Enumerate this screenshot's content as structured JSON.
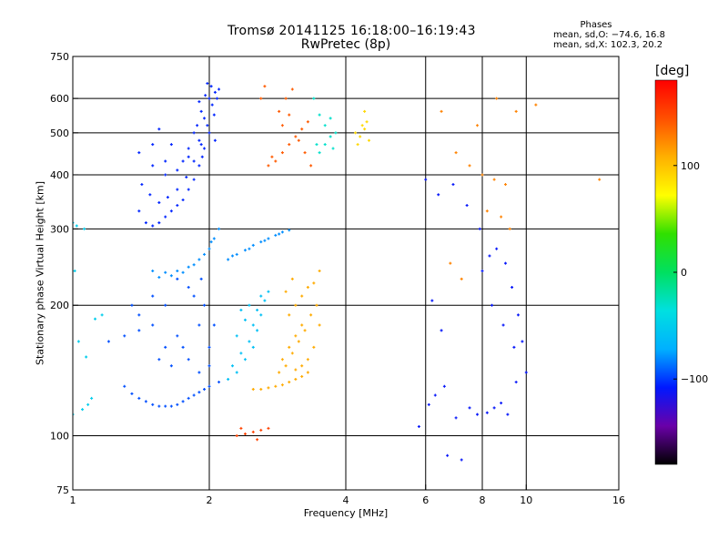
{
  "header": {
    "title_line1": "Tromsø 20141125 16:18:00–16:19:43",
    "title_line2": "RwPretec (8p)"
  },
  "phase_box": {
    "title": "Phases",
    "line_O": "mean, sd,O: −74.6, 16.8",
    "line_X": "mean, sd,X: 102.3, 20.2"
  },
  "colorbar": {
    "unit": "[deg]",
    "ticks": [
      {
        "value": 100,
        "label": "100"
      },
      {
        "value": 0,
        "label": "0"
      },
      {
        "value": -100,
        "label": "−100"
      }
    ],
    "range": [
      -180,
      180
    ],
    "colormap": [
      "#000000",
      "#6a00a8",
      "#0018ff",
      "#00b0ff",
      "#00e0e0",
      "#00e060",
      "#30e000",
      "#ffff00",
      "#ffb000",
      "#ff5000",
      "#ff0000"
    ]
  },
  "chart_data": {
    "type": "scatter",
    "title": "Tromsø 20141125 16:18:00–16:19:43",
    "subtitle": "RwPretec (8p)",
    "xlabel": "Frequency [MHz]",
    "ylabel": "Stationary phase Virtual Height [km]",
    "xscale": "log",
    "yscale": "log",
    "xlim": [
      1,
      16
    ],
    "ylim": [
      75,
      750
    ],
    "grid": true,
    "xticks": [
      {
        "value": 1,
        "label": "1"
      },
      {
        "value": 2,
        "label": "2"
      },
      {
        "value": 4,
        "label": "4"
      },
      {
        "value": 6,
        "label": "6"
      },
      {
        "value": 8,
        "label": "8"
      },
      {
        "value": 10,
        "label": "10"
      },
      {
        "value": 16,
        "label": "16"
      }
    ],
    "yticks": [
      {
        "value": 75,
        "label": "75"
      },
      {
        "value": 100,
        "label": "100"
      },
      {
        "value": 200,
        "label": "200"
      },
      {
        "value": 300,
        "label": "300"
      },
      {
        "value": 400,
        "label": "400"
      },
      {
        "value": 500,
        "label": "500"
      },
      {
        "value": 600,
        "label": "600"
      },
      {
        "value": 750,
        "label": "750"
      }
    ],
    "grid_x": [
      2,
      4,
      6,
      8,
      10
    ],
    "grid_y": [
      100,
      200,
      300,
      400,
      500,
      600
    ],
    "series": [
      {
        "points": [
          [
            1.4,
            330
          ],
          [
            1.45,
            310
          ],
          [
            1.5,
            305
          ],
          [
            1.55,
            310
          ],
          [
            1.6,
            320
          ],
          [
            1.65,
            330
          ],
          [
            1.7,
            340
          ],
          [
            1.75,
            350
          ],
          [
            1.8,
            370
          ],
          [
            1.85,
            390
          ],
          [
            1.9,
            420
          ],
          [
            1.95,
            460
          ],
          [
            2.0,
            500
          ],
          [
            2.05,
            550
          ],
          [
            2.08,
            600
          ],
          [
            2.1,
            630
          ],
          [
            1.42,
            380
          ],
          [
            1.48,
            360
          ],
          [
            1.55,
            345
          ],
          [
            1.62,
            355
          ],
          [
            1.7,
            370
          ],
          [
            1.78,
            395
          ],
          [
            1.85,
            430
          ],
          [
            1.92,
            470
          ],
          [
            1.98,
            520
          ],
          [
            2.03,
            580
          ],
          [
            2.06,
            620
          ],
          [
            1.5,
            420
          ],
          [
            1.6,
            400
          ],
          [
            1.7,
            410
          ],
          [
            1.8,
            440
          ],
          [
            1.9,
            480
          ],
          [
            1.95,
            540
          ],
          [
            2.0,
            600
          ],
          [
            1.4,
            450
          ],
          [
            1.5,
            470
          ],
          [
            1.6,
            430
          ],
          [
            1.65,
            470
          ],
          [
            1.55,
            510
          ],
          [
            1.92,
            560
          ],
          [
            1.96,
            610
          ],
          [
            1.9,
            590
          ],
          [
            2.02,
            640
          ],
          [
            1.98,
            650
          ],
          [
            1.88,
            520
          ],
          [
            2.06,
            480
          ],
          [
            1.85,
            500
          ],
          [
            1.93,
            440
          ],
          [
            1.8,
            460
          ],
          [
            1.75,
            430
          ]
        ],
        "phase": -105
      },
      {
        "points": [
          [
            1.5,
            240
          ],
          [
            1.6,
            238
          ],
          [
            1.7,
            240
          ],
          [
            1.8,
            245
          ],
          [
            1.9,
            255
          ],
          [
            2.0,
            270
          ],
          [
            2.05,
            285
          ],
          [
            2.1,
            300
          ],
          [
            1.55,
            232
          ],
          [
            1.65,
            234
          ],
          [
            1.75,
            238
          ],
          [
            1.85,
            248
          ],
          [
            1.95,
            262
          ],
          [
            2.02,
            280
          ],
          [
            2.2,
            255
          ],
          [
            2.3,
            262
          ],
          [
            2.4,
            268
          ],
          [
            2.5,
            275
          ],
          [
            2.6,
            280
          ],
          [
            2.7,
            285
          ],
          [
            2.8,
            290
          ],
          [
            2.9,
            295
          ],
          [
            3.0,
            298
          ],
          [
            2.25,
            260
          ],
          [
            2.45,
            270
          ],
          [
            2.65,
            282
          ],
          [
            2.85,
            292
          ]
        ],
        "phase": -80
      },
      {
        "points": [
          [
            1.3,
            130
          ],
          [
            1.35,
            125
          ],
          [
            1.4,
            122
          ],
          [
            1.5,
            118
          ],
          [
            1.6,
            117
          ],
          [
            1.7,
            118
          ],
          [
            1.8,
            122
          ],
          [
            1.9,
            126
          ],
          [
            2.0,
            130
          ],
          [
            2.1,
            133
          ],
          [
            1.45,
            120
          ],
          [
            1.55,
            117
          ],
          [
            1.65,
            117
          ],
          [
            1.75,
            120
          ],
          [
            1.85,
            124
          ],
          [
            1.95,
            128
          ],
          [
            1.2,
            165
          ],
          [
            1.3,
            170
          ],
          [
            1.4,
            175
          ],
          [
            1.5,
            180
          ],
          [
            1.6,
            160
          ],
          [
            1.7,
            170
          ],
          [
            1.8,
            150
          ],
          [
            1.9,
            140
          ],
          [
            2.0,
            145
          ],
          [
            1.55,
            150
          ],
          [
            1.65,
            145
          ],
          [
            1.75,
            160
          ],
          [
            1.9,
            180
          ],
          [
            1.95,
            200
          ],
          [
            1.85,
            210
          ],
          [
            2.0,
            160
          ],
          [
            2.05,
            180
          ],
          [
            1.92,
            230
          ],
          [
            1.6,
            200
          ],
          [
            1.5,
            210
          ],
          [
            1.4,
            190
          ],
          [
            1.35,
            200
          ],
          [
            1.7,
            230
          ],
          [
            1.8,
            220
          ]
        ],
        "phase": -95
      },
      {
        "points": [
          [
            2.2,
            135
          ],
          [
            2.3,
            140
          ],
          [
            2.4,
            150
          ],
          [
            2.5,
            160
          ],
          [
            2.55,
            175
          ],
          [
            2.6,
            190
          ],
          [
            2.65,
            205
          ],
          [
            2.7,
            215
          ],
          [
            2.25,
            145
          ],
          [
            2.35,
            155
          ],
          [
            2.45,
            165
          ],
          [
            2.5,
            180
          ],
          [
            2.55,
            195
          ],
          [
            2.6,
            210
          ],
          [
            2.3,
            170
          ],
          [
            2.4,
            185
          ],
          [
            2.45,
            200
          ],
          [
            2.35,
            195
          ]
        ],
        "phase": -60
      },
      {
        "points": [
          [
            2.5,
            128
          ],
          [
            2.6,
            128
          ],
          [
            2.7,
            129
          ],
          [
            2.8,
            130
          ],
          [
            2.9,
            131
          ],
          [
            3.0,
            133
          ],
          [
            3.1,
            135
          ],
          [
            3.2,
            137
          ],
          [
            3.3,
            140
          ],
          [
            2.9,
            150
          ],
          [
            3.0,
            160
          ],
          [
            3.1,
            170
          ],
          [
            3.2,
            180
          ],
          [
            3.0,
            190
          ],
          [
            3.1,
            200
          ],
          [
            2.95,
            215
          ],
          [
            3.05,
            230
          ],
          [
            3.2,
            210
          ],
          [
            3.3,
            220
          ],
          [
            3.4,
            225
          ],
          [
            3.5,
            240
          ],
          [
            2.85,
            140
          ],
          [
            2.95,
            145
          ],
          [
            3.05,
            155
          ],
          [
            3.15,
            165
          ],
          [
            3.25,
            175
          ],
          [
            3.35,
            190
          ],
          [
            3.45,
            200
          ],
          [
            3.5,
            180
          ],
          [
            3.4,
            160
          ],
          [
            3.3,
            150
          ],
          [
            3.2,
            145
          ],
          [
            3.1,
            142
          ]
        ],
        "phase": 110
      },
      {
        "points": [
          [
            2.7,
            420
          ],
          [
            2.8,
            430
          ],
          [
            2.9,
            450
          ],
          [
            3.0,
            470
          ],
          [
            3.1,
            490
          ],
          [
            3.2,
            510
          ],
          [
            3.3,
            530
          ],
          [
            2.85,
            560
          ],
          [
            2.95,
            600
          ],
          [
            3.05,
            630
          ],
          [
            2.75,
            440
          ],
          [
            3.15,
            480
          ],
          [
            3.25,
            450
          ],
          [
            3.35,
            420
          ],
          [
            2.6,
            600
          ],
          [
            2.65,
            640
          ],
          [
            3.0,
            550
          ],
          [
            2.9,
            520
          ]
        ],
        "phase": 140
      },
      {
        "points": [
          [
            3.5,
            450
          ],
          [
            3.6,
            470
          ],
          [
            3.7,
            490
          ],
          [
            3.8,
            500
          ],
          [
            3.6,
            520
          ],
          [
            3.5,
            550
          ],
          [
            3.7,
            540
          ],
          [
            3.4,
            600
          ],
          [
            3.45,
            470
          ],
          [
            3.75,
            460
          ]
        ],
        "phase": -30
      },
      {
        "points": [
          [
            4.2,
            500
          ],
          [
            4.3,
            490
          ],
          [
            4.4,
            510
          ],
          [
            4.5,
            480
          ],
          [
            4.35,
            520
          ],
          [
            4.25,
            470
          ],
          [
            4.45,
            530
          ],
          [
            4.4,
            560
          ]
        ],
        "phase": 90
      },
      {
        "points": [
          [
            2.3,
            100
          ],
          [
            2.4,
            101
          ],
          [
            2.5,
            102
          ],
          [
            2.6,
            103
          ],
          [
            2.7,
            104
          ],
          [
            2.35,
            104
          ],
          [
            2.55,
            98
          ]
        ],
        "phase": 150
      },
      {
        "points": [
          [
            6.5,
            560
          ],
          [
            7.0,
            450
          ],
          [
            7.5,
            420
          ],
          [
            8.0,
            400
          ],
          [
            8.5,
            390
          ],
          [
            9.0,
            380
          ],
          [
            8.2,
            330
          ],
          [
            8.8,
            320
          ],
          [
            9.2,
            300
          ],
          [
            7.8,
            520
          ],
          [
            8.6,
            600
          ],
          [
            9.5,
            560
          ],
          [
            10.5,
            580
          ],
          [
            14.5,
            390
          ],
          [
            6.8,
            250
          ],
          [
            7.2,
            230
          ]
        ],
        "phase": 125
      },
      {
        "points": [
          [
            5.8,
            105
          ],
          [
            6.1,
            118
          ],
          [
            6.3,
            124
          ],
          [
            6.6,
            130
          ],
          [
            7.0,
            110
          ],
          [
            7.5,
            116
          ],
          [
            7.8,
            112
          ],
          [
            8.2,
            113
          ],
          [
            8.5,
            116
          ],
          [
            8.8,
            119
          ],
          [
            9.1,
            112
          ],
          [
            9.5,
            133
          ],
          [
            6.7,
            90
          ],
          [
            7.2,
            88
          ],
          [
            8.0,
            240
          ],
          [
            8.3,
            260
          ],
          [
            8.6,
            270
          ],
          [
            9.0,
            250
          ],
          [
            9.3,
            220
          ],
          [
            9.6,
            190
          ],
          [
            9.8,
            165
          ],
          [
            10.0,
            140
          ],
          [
            6.0,
            390
          ],
          [
            6.4,
            360
          ],
          [
            6.9,
            380
          ],
          [
            7.4,
            340
          ],
          [
            7.9,
            300
          ],
          [
            8.4,
            200
          ],
          [
            8.9,
            180
          ],
          [
            9.4,
            160
          ],
          [
            6.2,
            205
          ],
          [
            6.5,
            175
          ]
        ],
        "phase": -110
      },
      {
        "points": [
          [
            1.0,
            310
          ],
          [
            1.02,
            305
          ],
          [
            1.06,
            300
          ],
          [
            1.08,
            118
          ],
          [
            1.1,
            122
          ],
          [
            1.05,
            115
          ],
          [
            1.0,
            112
          ],
          [
            1.12,
            186
          ],
          [
            1.16,
            190
          ],
          [
            1.03,
            165
          ],
          [
            1.01,
            240
          ],
          [
            1.07,
            152
          ]
        ],
        "phase": -50
      }
    ]
  }
}
